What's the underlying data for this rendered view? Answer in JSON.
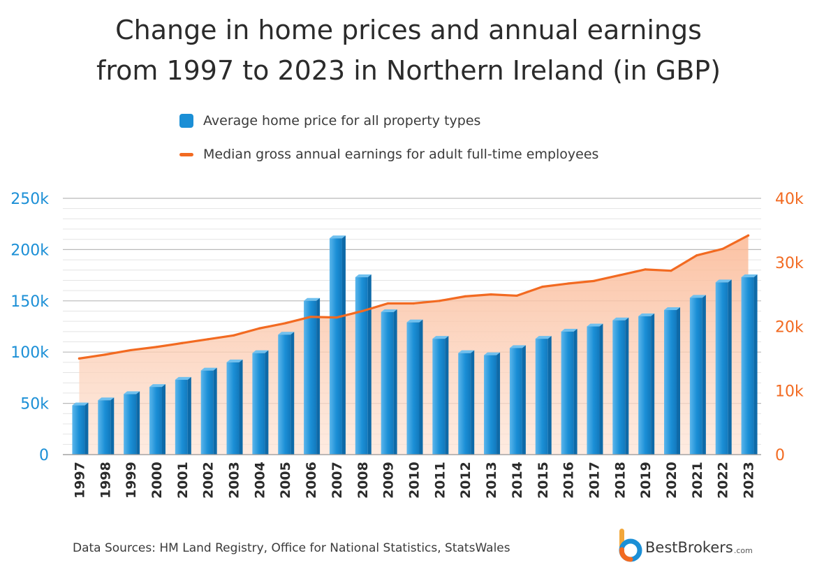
{
  "title_line1": "Change in home prices and annual earnings",
  "title_line2": "from 1997 to 2023 in Northern Ireland (in GBP)",
  "source": "Data Sources: HM Land Registry, Office for National Statistics, StatsWales",
  "logo": {
    "name": "BestBrokers",
    "domain": ".com"
  },
  "colors": {
    "bar": "#1b8fd6",
    "bar_dark": "#0e6aa8",
    "line": "#f26a21",
    "area": "#fcc9ad",
    "left_axis": "#1b8fd6",
    "right_axis": "#f26a21"
  },
  "chart_data": {
    "type": "bar",
    "title": "Change in home prices and annual earnings from 1997 to 2023 in Northern Ireland (in GBP)",
    "categories": [
      "1997",
      "1998",
      "1999",
      "2000",
      "2001",
      "2002",
      "2003",
      "2004",
      "2005",
      "2006",
      "2007",
      "2008",
      "2009",
      "2010",
      "2011",
      "2012",
      "2013",
      "2014",
      "2015",
      "2016",
      "2017",
      "2018",
      "2019",
      "2020",
      "2021",
      "2022",
      "2023"
    ],
    "series": [
      {
        "name": "Average home price for all property types",
        "type": "bar",
        "axis": "left",
        "values": [
          48000,
          53000,
          59000,
          66000,
          73000,
          82000,
          90000,
          99000,
          117000,
          150000,
          211000,
          173000,
          139000,
          129000,
          113000,
          99000,
          97000,
          104000,
          113000,
          120000,
          125000,
          131000,
          135000,
          141000,
          153000,
          168000,
          173000
        ]
      },
      {
        "name": "Median gross annual earnings for adult full-time employees",
        "type": "area",
        "axis": "right",
        "values": [
          15000,
          15600,
          16300,
          16800,
          17400,
          18000,
          18600,
          19700,
          20500,
          21500,
          21400,
          22400,
          23600,
          23600,
          24000,
          24700,
          25000,
          24800,
          26200,
          26700,
          27100,
          28000,
          28900,
          28700,
          31100,
          32100,
          34200
        ]
      }
    ],
    "y_left": {
      "ticks": [
        "0",
        "50k",
        "100k",
        "150k",
        "200k",
        "250k"
      ],
      "range": [
        0,
        250000
      ]
    },
    "y_right": {
      "ticks": [
        "0",
        "10k",
        "20k",
        "30k",
        "40k"
      ],
      "range": [
        0,
        40000
      ]
    },
    "grid": true,
    "legend_position": "top-center"
  }
}
